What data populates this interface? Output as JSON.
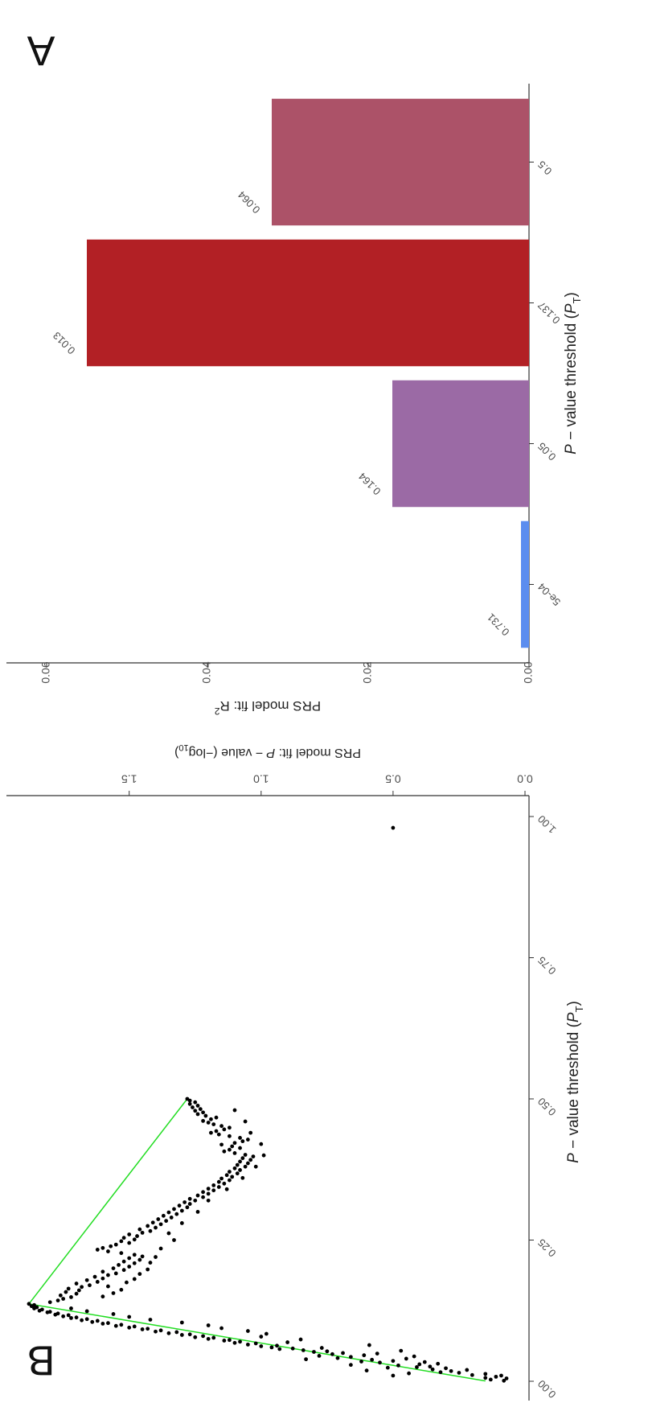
{
  "chart_data": [
    {
      "panel_label": "A",
      "type": "bar",
      "xlabel": "P − value threshold (P_T)",
      "xlabel_parts": {
        "italic": "P",
        "main": " − value threshold (",
        "sub_main": "P",
        "sub": "T",
        "end": ")"
      },
      "ylabel": "PRS model fit:  R²",
      "ylabel_parts": {
        "main": "PRS model fit:  R",
        "sup": "2"
      },
      "categories": [
        "5e-04",
        "0.05",
        "0.137",
        "0.5"
      ],
      "values": [
        0.001,
        0.017,
        0.055,
        0.032
      ],
      "bar_labels": [
        "0.731",
        "0.164",
        "0.013",
        "0.064"
      ],
      "colors": [
        "#5b8def",
        "#9b6aa5",
        "#b22025",
        "#ac5268"
      ],
      "ylim": [
        0,
        0.065
      ],
      "yticks": [
        0.0,
        0.02,
        0.04,
        0.06
      ],
      "ytick_labels": [
        "0.00",
        "0.02",
        "0.04",
        "0.06"
      ]
    },
    {
      "panel_label": "B",
      "type": "scatter",
      "xlabel": "P − value threshold (P_T)",
      "xlabel_parts": {
        "italic": "P",
        "main": " − value threshold (",
        "sub_main": "P",
        "sub": "T",
        "end": ")"
      },
      "ylabel": "PRS model fit:  P − value (−log10)",
      "ylabel_parts": {
        "pre": "PRS model fit:  ",
        "italic": "P",
        "main": " − value (−log",
        "sub": "10",
        "end": ")"
      },
      "xlim": [
        0,
        1.0
      ],
      "ylim": [
        0,
        1.95
      ],
      "xticks": [
        0.0,
        0.25,
        0.5,
        0.75,
        1.0
      ],
      "xtick_labels": [
        "0.00",
        "0.25",
        "0.50",
        "0.75",
        "1.00"
      ],
      "yticks": [
        0.0,
        0.5,
        1.0,
        1.5
      ],
      "ytick_labels": [
        "0.0",
        "0.5",
        "1.0",
        "1.5"
      ],
      "line_color": "#22dd22",
      "point_color": "#000000",
      "highlight_line": [
        [
          0.0005,
          0.15
        ],
        [
          0.137,
          1.88
        ],
        [
          0.5,
          1.28
        ]
      ],
      "points": [
        [
          0.001,
          0.08
        ],
        [
          0.003,
          0.13
        ],
        [
          0.005,
          0.07
        ],
        [
          0.006,
          0.15
        ],
        [
          0.008,
          0.11
        ],
        [
          0.01,
          0.09
        ],
        [
          0.011,
          0.2
        ],
        [
          0.013,
          0.15
        ],
        [
          0.015,
          0.25
        ],
        [
          0.016,
          0.32
        ],
        [
          0.018,
          0.28
        ],
        [
          0.02,
          0.22
        ],
        [
          0.021,
          0.35
        ],
        [
          0.023,
          0.3
        ],
        [
          0.025,
          0.41
        ],
        [
          0.026,
          0.36
        ],
        [
          0.028,
          0.48
        ],
        [
          0.03,
          0.4
        ],
        [
          0.031,
          0.33
        ],
        [
          0.033,
          0.55
        ],
        [
          0.035,
          0.62
        ],
        [
          0.036,
          0.5
        ],
        [
          0.038,
          0.58
        ],
        [
          0.04,
          0.45
        ],
        [
          0.041,
          0.71
        ],
        [
          0.043,
          0.66
        ],
        [
          0.045,
          0.78
        ],
        [
          0.046,
          0.61
        ],
        [
          0.048,
          0.73
        ],
        [
          0.05,
          0.69
        ],
        [
          0.052,
          0.8
        ],
        [
          0.053,
          0.75
        ],
        [
          0.055,
          0.84
        ],
        [
          0.057,
          0.93
        ],
        [
          0.058,
          0.88
        ],
        [
          0.06,
          0.96
        ],
        [
          0.062,
          1.0
        ],
        [
          0.063,
          0.94
        ],
        [
          0.065,
          1.05
        ],
        [
          0.067,
          1.02
        ],
        [
          0.068,
          1.1
        ],
        [
          0.07,
          1.08
        ],
        [
          0.072,
          1.14
        ],
        [
          0.073,
          1.12
        ],
        [
          0.075,
          1.2
        ],
        [
          0.077,
          1.18
        ],
        [
          0.078,
          1.25
        ],
        [
          0.08,
          1.22
        ],
        [
          0.082,
          1.3
        ],
        [
          0.083,
          1.27
        ],
        [
          0.085,
          1.35
        ],
        [
          0.087,
          1.32
        ],
        [
          0.088,
          1.4
        ],
        [
          0.09,
          1.38
        ],
        [
          0.092,
          1.45
        ],
        [
          0.093,
          1.43
        ],
        [
          0.095,
          1.5
        ],
        [
          0.097,
          1.48
        ],
        [
          0.098,
          1.55
        ],
        [
          0.1,
          1.53
        ],
        [
          0.102,
          1.6
        ],
        [
          0.103,
          1.58
        ],
        [
          0.105,
          1.64
        ],
        [
          0.107,
          1.62
        ],
        [
          0.108,
          1.68
        ],
        [
          0.11,
          1.66
        ],
        [
          0.112,
          1.72
        ],
        [
          0.113,
          1.7
        ],
        [
          0.115,
          1.75
        ],
        [
          0.117,
          1.73
        ],
        [
          0.118,
          1.78
        ],
        [
          0.12,
          1.77
        ],
        [
          0.122,
          1.81
        ],
        [
          0.123,
          1.8
        ],
        [
          0.125,
          1.84
        ],
        [
          0.127,
          1.83
        ],
        [
          0.129,
          1.86
        ],
        [
          0.131,
          1.85
        ],
        [
          0.133,
          1.87
        ],
        [
          0.135,
          1.86
        ],
        [
          0.137,
          1.88
        ],
        [
          0.01,
          0.5
        ],
        [
          0.014,
          0.44
        ],
        [
          0.019,
          0.6
        ],
        [
          0.024,
          0.52
        ],
        [
          0.029,
          0.66
        ],
        [
          0.034,
          0.38
        ],
        [
          0.039,
          0.83
        ],
        [
          0.044,
          0.42
        ],
        [
          0.049,
          0.56
        ],
        [
          0.054,
          0.47
        ],
        [
          0.059,
          0.77
        ],
        [
          0.064,
          0.59
        ],
        [
          0.069,
          0.9
        ],
        [
          0.074,
          0.85
        ],
        [
          0.079,
          1.0
        ],
        [
          0.084,
          0.98
        ],
        [
          0.089,
          1.05
        ],
        [
          0.094,
          1.15
        ],
        [
          0.099,
          1.2
        ],
        [
          0.104,
          1.3
        ],
        [
          0.109,
          1.42
        ],
        [
          0.114,
          1.5
        ],
        [
          0.119,
          1.56
        ],
        [
          0.124,
          1.66
        ],
        [
          0.129,
          1.72
        ],
        [
          0.14,
          1.8
        ],
        [
          0.143,
          1.77
        ],
        [
          0.146,
          1.75
        ],
        [
          0.149,
          1.72
        ],
        [
          0.152,
          1.76
        ],
        [
          0.155,
          1.7
        ],
        [
          0.158,
          1.74
        ],
        [
          0.161,
          1.69
        ],
        [
          0.164,
          1.73
        ],
        [
          0.167,
          1.68
        ],
        [
          0.17,
          1.65
        ],
        [
          0.173,
          1.7
        ],
        [
          0.176,
          1.62
        ],
        [
          0.179,
          1.66
        ],
        [
          0.182,
          1.6
        ],
        [
          0.185,
          1.63
        ],
        [
          0.188,
          1.58
        ],
        [
          0.191,
          1.55
        ],
        [
          0.194,
          1.6
        ],
        [
          0.197,
          1.52
        ],
        [
          0.2,
          1.56
        ],
        [
          0.203,
          1.5
        ],
        [
          0.206,
          1.54
        ],
        [
          0.209,
          1.48
        ],
        [
          0.212,
          1.52
        ],
        [
          0.215,
          1.46
        ],
        [
          0.218,
          1.5
        ],
        [
          0.221,
          1.45
        ],
        [
          0.224,
          1.48
        ],
        [
          0.227,
          1.53
        ],
        [
          0.23,
          1.58
        ],
        [
          0.233,
          1.62
        ],
        [
          0.236,
          1.6
        ],
        [
          0.239,
          1.57
        ],
        [
          0.242,
          1.55
        ],
        [
          0.245,
          1.5
        ],
        [
          0.248,
          1.53
        ],
        [
          0.251,
          1.48
        ],
        [
          0.254,
          1.52
        ],
        [
          0.257,
          1.47
        ],
        [
          0.26,
          1.5
        ],
        [
          0.263,
          1.45
        ],
        [
          0.266,
          1.42
        ],
        [
          0.269,
          1.46
        ],
        [
          0.272,
          1.4
        ],
        [
          0.275,
          1.43
        ],
        [
          0.278,
          1.38
        ],
        [
          0.281,
          1.41
        ],
        [
          0.284,
          1.36
        ],
        [
          0.287,
          1.39
        ],
        [
          0.29,
          1.34
        ],
        [
          0.293,
          1.37
        ],
        [
          0.296,
          1.32
        ],
        [
          0.299,
          1.35
        ],
        [
          0.302,
          1.3
        ],
        [
          0.305,
          1.33
        ],
        [
          0.308,
          1.28
        ],
        [
          0.311,
          1.31
        ],
        [
          0.314,
          1.27
        ],
        [
          0.317,
          1.29
        ],
        [
          0.32,
          1.25
        ],
        [
          0.323,
          1.27
        ],
        [
          0.326,
          1.22
        ],
        [
          0.329,
          1.24
        ],
        [
          0.332,
          1.2
        ],
        [
          0.335,
          1.22
        ],
        [
          0.338,
          1.18
        ],
        [
          0.341,
          1.2
        ],
        [
          0.344,
          1.16
        ],
        [
          0.347,
          1.18
        ],
        [
          0.35,
          1.14
        ],
        [
          0.353,
          1.16
        ],
        [
          0.356,
          1.12
        ],
        [
          0.359,
          1.15
        ],
        [
          0.362,
          1.11
        ],
        [
          0.365,
          1.13
        ],
        [
          0.368,
          1.09
        ],
        [
          0.371,
          1.12
        ],
        [
          0.374,
          1.08
        ],
        [
          0.377,
          1.1
        ],
        [
          0.38,
          1.06
        ],
        [
          0.383,
          1.09
        ],
        [
          0.386,
          1.05
        ],
        [
          0.389,
          1.08
        ],
        [
          0.392,
          1.04
        ],
        [
          0.395,
          1.07
        ],
        [
          0.398,
          1.03
        ],
        [
          0.401,
          1.06
        ],
        [
          0.404,
          1.1
        ],
        [
          0.407,
          1.14
        ],
        [
          0.41,
          1.12
        ],
        [
          0.413,
          1.08
        ],
        [
          0.416,
          1.11
        ],
        [
          0.419,
          1.15
        ],
        [
          0.422,
          1.1
        ],
        [
          0.425,
          1.07
        ],
        [
          0.428,
          1.05
        ],
        [
          0.431,
          1.08
        ],
        [
          0.434,
          1.12
        ],
        [
          0.437,
          1.16
        ],
        [
          0.44,
          1.19
        ],
        [
          0.443,
          1.17
        ],
        [
          0.446,
          1.14
        ],
        [
          0.449,
          1.12
        ],
        [
          0.452,
          1.15
        ],
        [
          0.455,
          1.18
        ],
        [
          0.458,
          1.2
        ],
        [
          0.461,
          1.22
        ],
        [
          0.464,
          1.19
        ],
        [
          0.467,
          1.17
        ],
        [
          0.47,
          1.21
        ],
        [
          0.473,
          1.24
        ],
        [
          0.476,
          1.22
        ],
        [
          0.479,
          1.25
        ],
        [
          0.482,
          1.23
        ],
        [
          0.485,
          1.26
        ],
        [
          0.488,
          1.24
        ],
        [
          0.491,
          1.27
        ],
        [
          0.494,
          1.25
        ],
        [
          0.497,
          1.27
        ],
        [
          0.5,
          1.28
        ],
        [
          0.15,
          1.6
        ],
        [
          0.156,
          1.56
        ],
        [
          0.162,
          1.53
        ],
        [
          0.168,
          1.58
        ],
        [
          0.175,
          1.51
        ],
        [
          0.181,
          1.48
        ],
        [
          0.19,
          1.46
        ],
        [
          0.198,
          1.43
        ],
        [
          0.21,
          1.42
        ],
        [
          0.22,
          1.4
        ],
        [
          0.235,
          1.38
        ],
        [
          0.25,
          1.33
        ],
        [
          0.262,
          1.35
        ],
        [
          0.28,
          1.3
        ],
        [
          0.3,
          1.24
        ],
        [
          0.32,
          1.2
        ],
        [
          0.34,
          1.13
        ],
        [
          0.36,
          1.07
        ],
        [
          0.38,
          1.02
        ],
        [
          0.4,
          0.99
        ],
        [
          0.42,
          1.0
        ],
        [
          0.44,
          1.04
        ],
        [
          0.46,
          1.06
        ],
        [
          0.48,
          1.1
        ],
        [
          0.98,
          0.5
        ]
      ]
    }
  ]
}
